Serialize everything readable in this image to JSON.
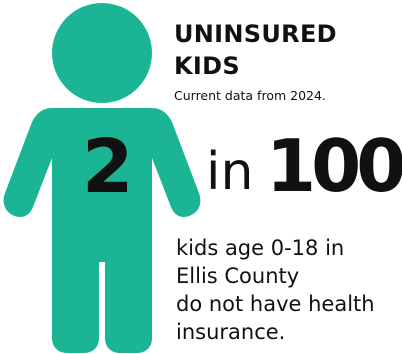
{
  "title": {
    "line1": "UNINSURED",
    "line2": "KIDS"
  },
  "subtitle": "Current data from 2024.",
  "stat": {
    "count": "2",
    "connector": "in",
    "total": "100"
  },
  "description": {
    "lines": [
      "kids age 0-18 in",
      "Ellis County",
      "do not have health",
      "insurance."
    ]
  },
  "icon": "child-figure-icon",
  "colors": {
    "figure": "#1bb596",
    "text": "#111111",
    "background": "#ffffff"
  }
}
